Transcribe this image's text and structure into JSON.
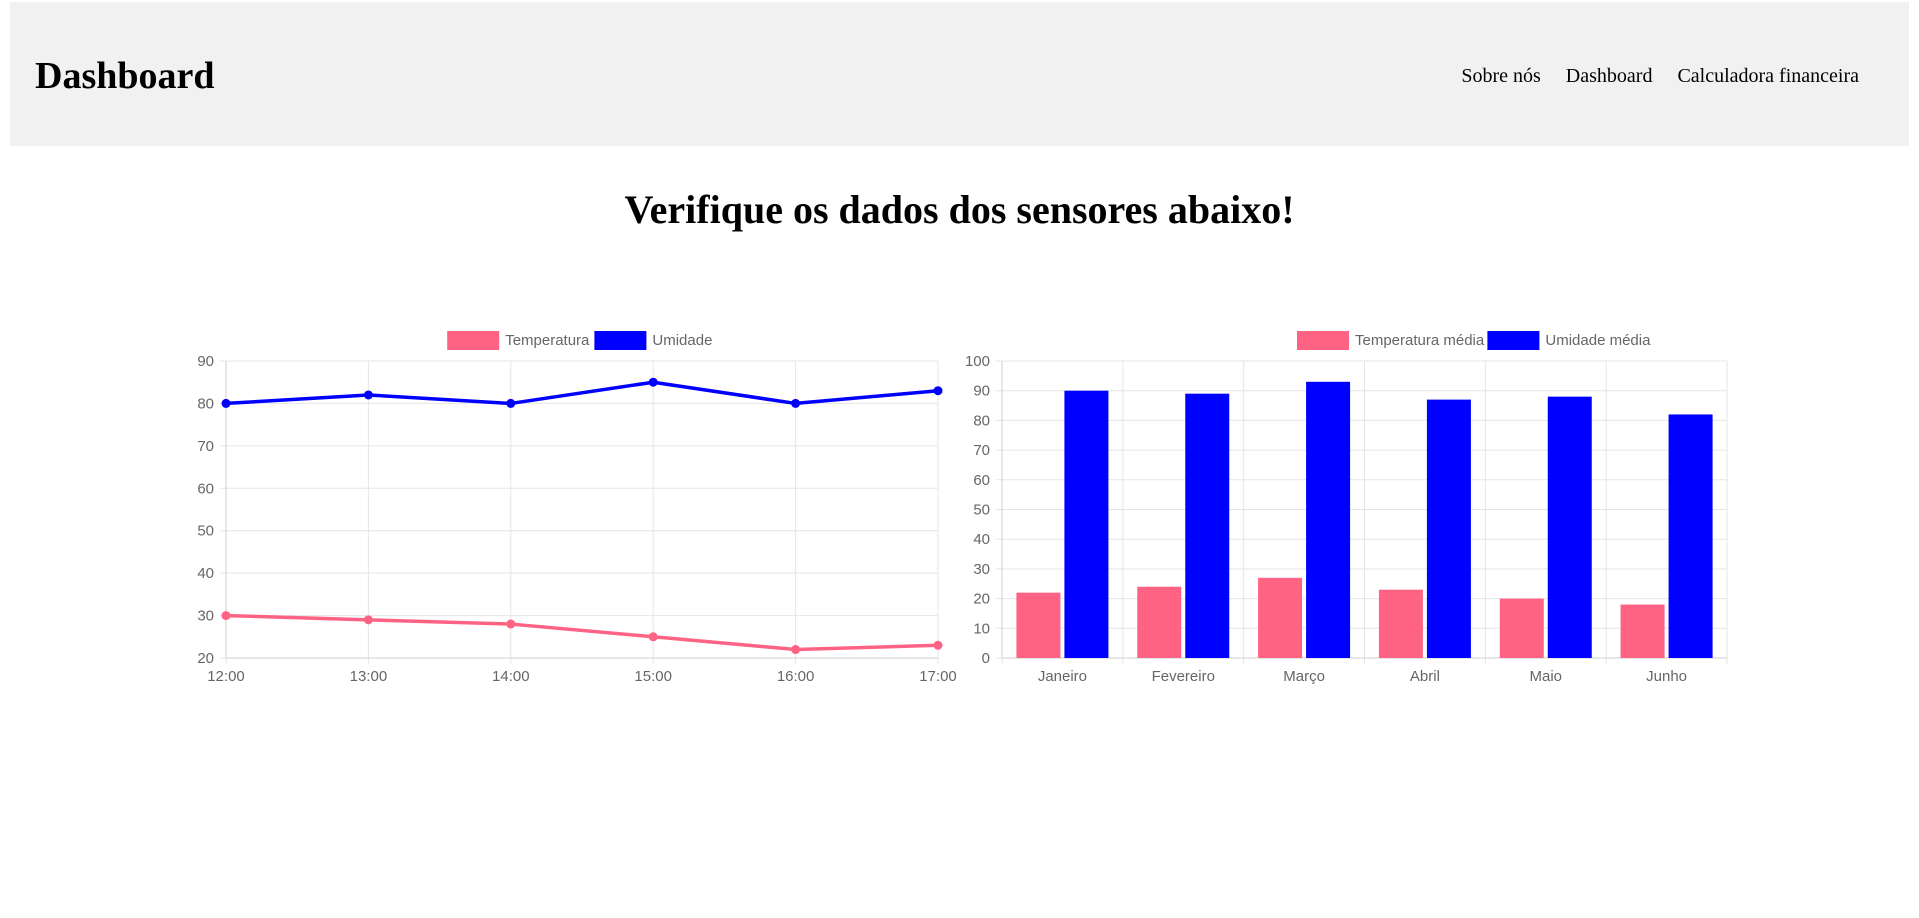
{
  "header": {
    "brand": "Dashboard",
    "nav": [
      {
        "label": "Sobre nós"
      },
      {
        "label": "Dashboard"
      },
      {
        "label": "Calculadora financeira"
      }
    ]
  },
  "main": {
    "headline": "Verifique os dados dos sensores abaixo!"
  },
  "colors": {
    "pink": "#ff6384",
    "blue": "#0000ff",
    "grid": "#e5e5e5",
    "tick": "#666666"
  },
  "chart_data": [
    {
      "type": "line",
      "categories": [
        "12:00",
        "13:00",
        "14:00",
        "15:00",
        "16:00",
        "17:00"
      ],
      "series": [
        {
          "name": "Temperatura",
          "values": [
            30,
            29,
            28,
            25,
            22,
            23
          ],
          "color": "#ff6384"
        },
        {
          "name": "Umidade",
          "values": [
            80,
            82,
            80,
            85,
            80,
            83
          ],
          "color": "#0000ff"
        }
      ],
      "ylim": [
        20,
        90
      ],
      "yticks": [
        20,
        30,
        40,
        50,
        60,
        70,
        80,
        90
      ],
      "legend": "top",
      "grid": true
    },
    {
      "type": "bar",
      "categories": [
        "Janeiro",
        "Fevereiro",
        "Março",
        "Abril",
        "Maio",
        "Junho"
      ],
      "series": [
        {
          "name": "Temperatura média",
          "values": [
            22,
            24,
            27,
            23,
            20,
            18
          ],
          "color": "#ff6384"
        },
        {
          "name": "Umidade média",
          "values": [
            90,
            89,
            93,
            87,
            88,
            82
          ],
          "color": "#0000ff"
        }
      ],
      "ylim": [
        0,
        100
      ],
      "yticks": [
        0,
        10,
        20,
        30,
        40,
        50,
        60,
        70,
        80,
        90,
        100
      ],
      "legend": "top",
      "grid": true
    }
  ]
}
